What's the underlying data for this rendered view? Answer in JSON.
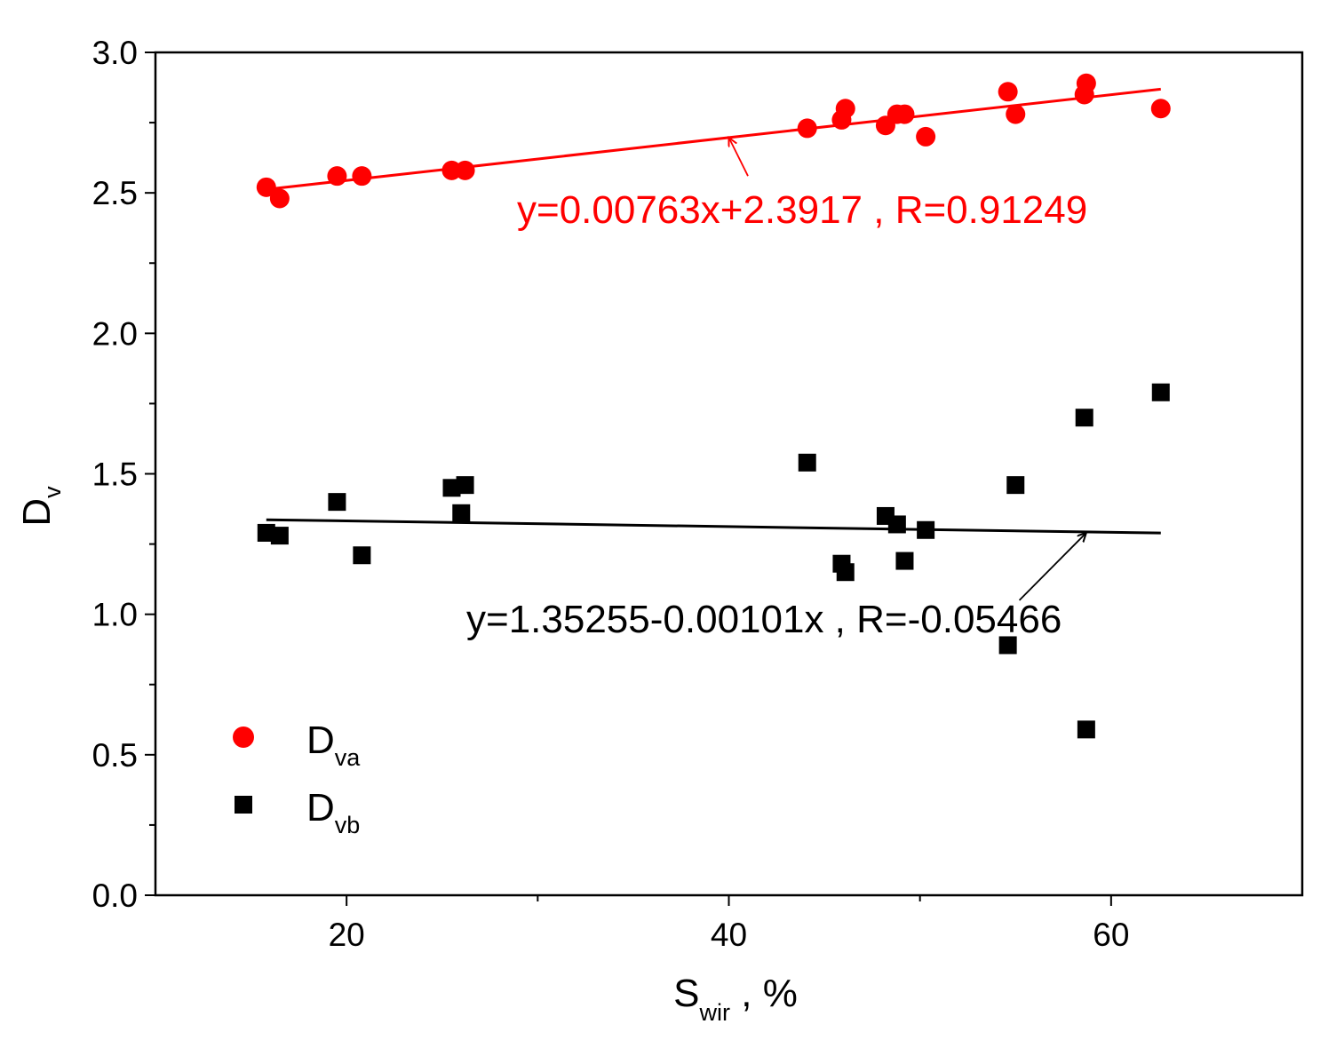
{
  "chart_data": {
    "type": "scatter",
    "title": "",
    "xlabel": {
      "main": "S",
      "sub": "wir",
      "suffix": " , %"
    },
    "ylabel": {
      "main": "D",
      "sub": "v"
    },
    "xlim": [
      10,
      70
    ],
    "ylim": [
      0.0,
      3.0
    ],
    "x_ticks": [
      20,
      40,
      60
    ],
    "x_minor_ticks": [
      10,
      30,
      50,
      70
    ],
    "y_ticks": [
      "0.0",
      "0.5",
      "1.0",
      "1.5",
      "2.0",
      "2.5",
      "3.0"
    ],
    "y_minor_ticks": [
      0.25,
      0.75,
      1.25,
      1.75,
      2.25,
      2.75
    ],
    "grid": false,
    "legend_position": "bottom-left",
    "series": [
      {
        "name": "D_va",
        "legend": {
          "main": "D",
          "sub": "va"
        },
        "marker": "circle",
        "color": "#ff0000",
        "x": [
          15.8,
          16.5,
          19.5,
          20.8,
          25.5,
          26.2,
          44.1,
          45.9,
          46.1,
          48.2,
          48.8,
          49.2,
          50.3,
          54.6,
          55.0,
          58.6,
          58.7,
          62.6
        ],
        "y": [
          2.52,
          2.48,
          2.56,
          2.56,
          2.58,
          2.58,
          2.73,
          2.76,
          2.8,
          2.74,
          2.78,
          2.78,
          2.7,
          2.86,
          2.78,
          2.85,
          2.89,
          2.8
        ]
      },
      {
        "name": "D_vb",
        "legend": {
          "main": "D",
          "sub": "vb"
        },
        "marker": "square",
        "color": "#000000",
        "x": [
          15.8,
          16.5,
          19.5,
          20.8,
          25.5,
          26.2,
          26.0,
          44.1,
          45.9,
          46.1,
          48.2,
          48.8,
          49.2,
          50.3,
          54.6,
          55.0,
          58.6,
          58.7,
          62.6
        ],
        "y": [
          1.29,
          1.28,
          1.4,
          1.21,
          1.45,
          1.46,
          1.36,
          1.54,
          1.18,
          1.15,
          1.35,
          1.32,
          1.19,
          1.3,
          0.89,
          1.46,
          1.7,
          0.59,
          1.79
        ]
      }
    ],
    "fits": [
      {
        "series": "D_va",
        "slope": 0.00763,
        "intercept": 2.3917,
        "x_range": [
          15.8,
          62.6
        ],
        "color": "#ff0000",
        "label": "y=0.00763x+2.3917 , R=0.91249",
        "arrow_tip": [
          40.0,
          2.6969
        ],
        "arrow_tail": [
          41.0,
          2.56
        ]
      },
      {
        "series": "D_vb",
        "slope": -0.00101,
        "intercept": 1.35255,
        "x_range": [
          15.8,
          62.6
        ],
        "color": "#000000",
        "label": "y=1.35255-0.00101x , R=-0.05466",
        "arrow_tip": [
          58.7,
          1.29
        ],
        "arrow_tail": [
          55.2,
          1.05
        ]
      }
    ]
  }
}
